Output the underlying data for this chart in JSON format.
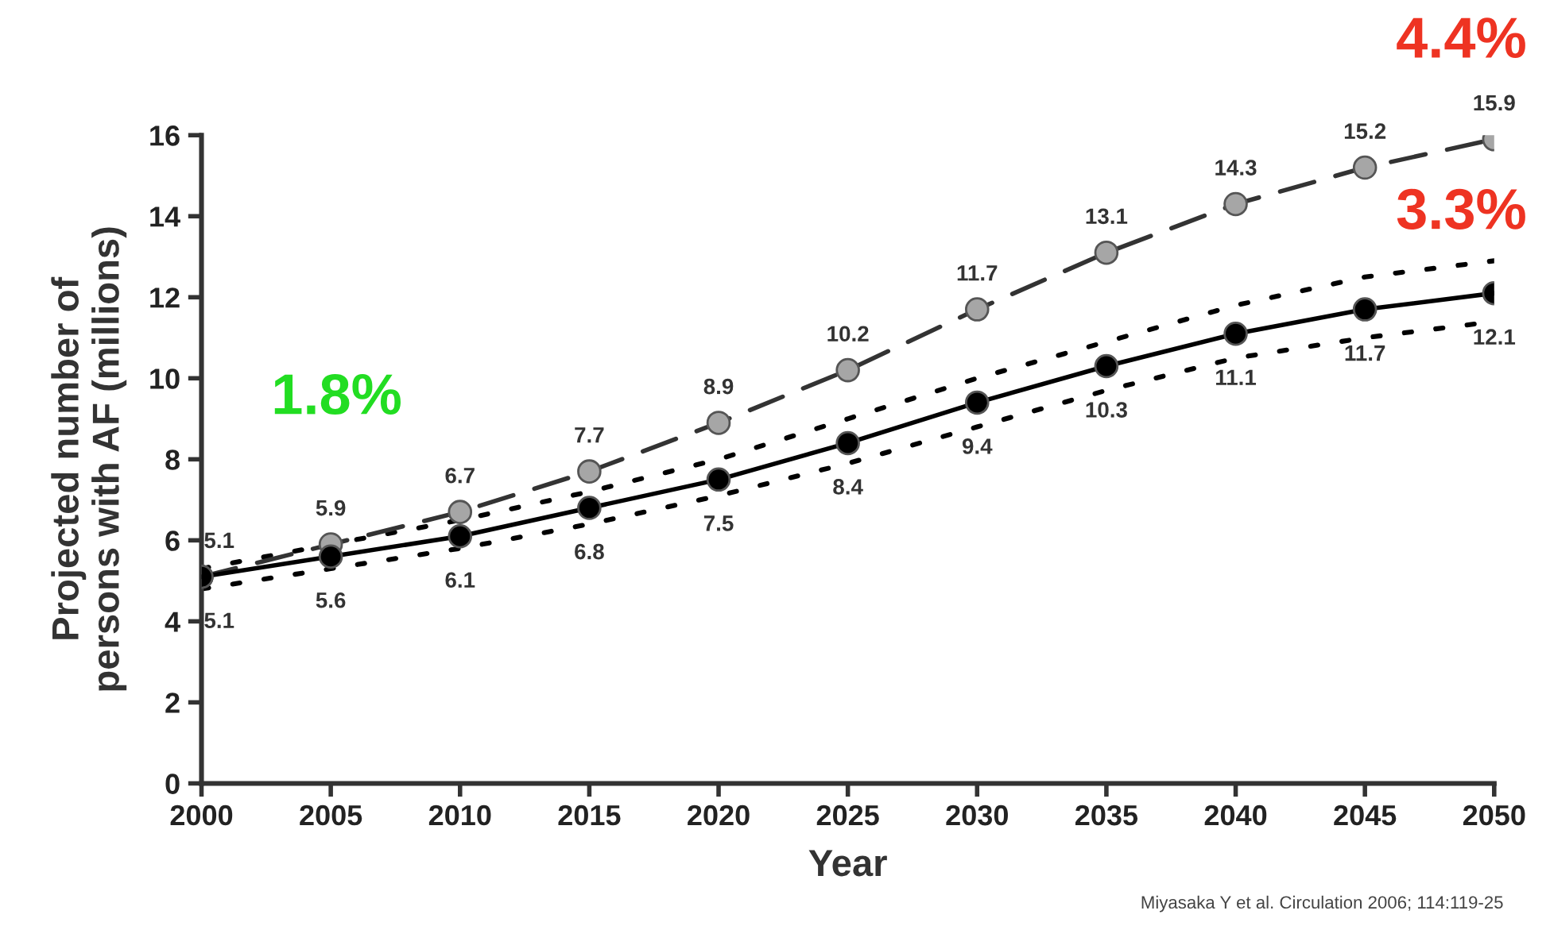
{
  "chart_data": {
    "type": "line",
    "xlabel": "Year",
    "ylabel": "Projected number of\npersons with AF (millions)",
    "x": [
      2000,
      2005,
      2010,
      2015,
      2020,
      2025,
      2030,
      2035,
      2040,
      2045,
      2050
    ],
    "series": [
      {
        "color": "#a6a6a6",
        "line_style": "dashed",
        "values": [
          5.1,
          5.9,
          6.7,
          7.7,
          8.9,
          10.2,
          11.7,
          13.1,
          14.3,
          15.2,
          15.9
        ],
        "value_labels": [
          "5.1",
          "5.9",
          "6.7",
          "7.7",
          "8.9",
          "10.2",
          "11.7",
          "13.1",
          "14.3",
          "15.2",
          "15.9"
        ]
      },
      {
        "color": "#000000",
        "line_style": "solid",
        "values": [
          5.1,
          5.6,
          6.1,
          6.8,
          7.5,
          8.4,
          9.4,
          10.3,
          11.1,
          11.7,
          12.1
        ],
        "value_labels": [
          "5.1",
          "5.6",
          "6.1",
          "6.8",
          "7.5",
          "8.4",
          "9.4",
          "10.3",
          "11.1",
          "11.7",
          "12.1"
        ]
      },
      {
        "color": "#000000",
        "line_style": "dotted",
        "marker": "none",
        "values": [
          5.3,
          5.9,
          6.5,
          7.2,
          8.0,
          9.0,
          10.0,
          10.9,
          11.8,
          12.5,
          12.9
        ]
      },
      {
        "color": "#000000",
        "line_style": "dotted",
        "marker": "none",
        "values": [
          4.8,
          5.3,
          5.8,
          6.4,
          7.1,
          7.9,
          8.8,
          9.7,
          10.5,
          11.0,
          11.4
        ]
      }
    ],
    "marker": "circle",
    "grid": false,
    "xlim": [
      2000,
      2050
    ],
    "xticks": [
      2000,
      2005,
      2010,
      2015,
      2020,
      2025,
      2030,
      2035,
      2040,
      2045,
      2050
    ],
    "ylim": [
      0,
      16
    ],
    "yticks": [
      0,
      2,
      4,
      6,
      8,
      10,
      12,
      14,
      16
    ],
    "annotations": [
      "1.8%",
      "3.3%",
      "4.4%",
      "Miyasaka Y et al. Circulation 2006; 114:119-25"
    ]
  }
}
